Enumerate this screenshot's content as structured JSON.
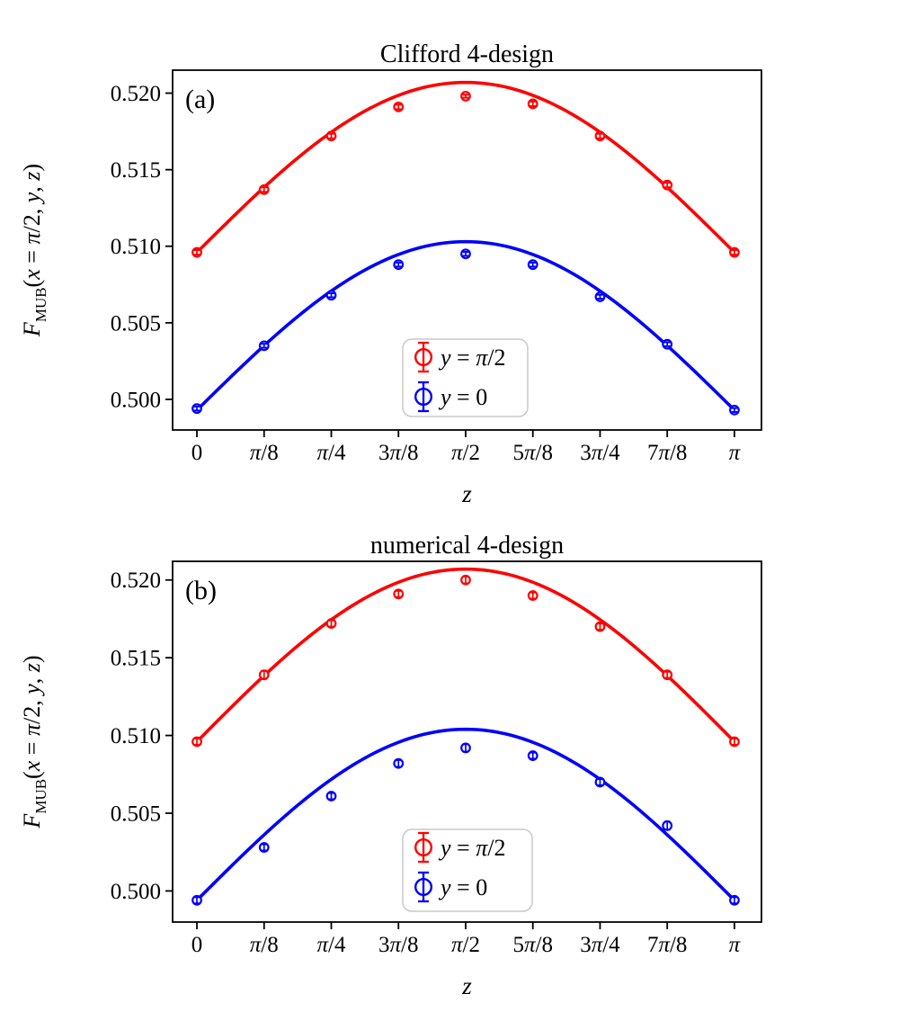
{
  "figure": {
    "background": "#ffffff",
    "text_color": "#000000",
    "red": "#ff0000",
    "blue": "#0000ff",
    "legend_border": "#c9c9c9"
  },
  "chart_data": [
    {
      "id": "a",
      "type": "scatter",
      "panel_label": "(a)",
      "title": "Clifford 4-design",
      "xlabel": "z",
      "ylabel_text": "F_MUB(x = π/2, y, z)",
      "ylabel_segments": [
        {
          "t": "F",
          "it": true
        },
        {
          "t": "MUB",
          "sub": true
        },
        {
          "t": "(",
          "it": false
        },
        {
          "t": "x",
          "it": true
        },
        {
          "t": " = ",
          "it": false
        },
        {
          "t": "π",
          "it": true
        },
        {
          "t": "/2, ",
          "it": false
        },
        {
          "t": "y",
          "it": true
        },
        {
          "t": ", ",
          "it": false
        },
        {
          "t": "z",
          "it": true
        },
        {
          "t": ")",
          "it": false
        }
      ],
      "x": [
        0,
        0.3927,
        0.7854,
        1.1781,
        1.5708,
        1.9635,
        2.3562,
        2.7489,
        3.1416
      ],
      "x_tick_labels": [
        "0",
        "π/8",
        "π/4",
        "3π/8",
        "π/2",
        "5π/8",
        "3π/4",
        "7π/8",
        "π"
      ],
      "y_tick_labels": [
        "0.500",
        "0.505",
        "0.510",
        "0.515",
        "0.520"
      ],
      "y_tick_values": [
        0.5,
        0.505,
        0.51,
        0.515,
        0.52
      ],
      "xlim": [
        -0.142,
        3.2996
      ],
      "ylim": [
        0.498,
        0.5215
      ],
      "grid": false,
      "legend_position": "lower center",
      "series": [
        {
          "key": "y-pi-half",
          "label": "y = π/2",
          "color": "#ff0000",
          "values": [
            0.5096,
            0.5137,
            0.5172,
            0.5191,
            0.5198,
            0.5193,
            0.5172,
            0.514,
            0.5096
          ],
          "errors": [
            0.00015,
            0.00015,
            0.00015,
            0.00015,
            0.0001,
            0.00015,
            0.00015,
            0.00015,
            0.00015
          ],
          "fit": {
            "type": "sine",
            "offset": 0.5096,
            "amplitude": 0.0111
          }
        },
        {
          "key": "y-zero",
          "label": "y = 0",
          "color": "#0000ff",
          "values": [
            0.4994,
            0.5035,
            0.5068,
            0.5088,
            0.5095,
            0.5088,
            0.5067,
            0.5036,
            0.4993
          ],
          "errors": [
            0.00013,
            0.00013,
            0.00013,
            0.00013,
            0.00013,
            0.00013,
            0.00013,
            0.00013,
            0.00013
          ],
          "fit": {
            "type": "sine",
            "offset": 0.4993,
            "amplitude": 0.011
          }
        }
      ]
    },
    {
      "id": "b",
      "type": "scatter",
      "panel_label": "(b)",
      "title": "numerical 4-design",
      "xlabel": "z",
      "ylabel_text": "F_MUB(x = π/2, y, z)",
      "ylabel_segments": [
        {
          "t": "F",
          "it": true
        },
        {
          "t": "MUB",
          "sub": true
        },
        {
          "t": "(",
          "it": false
        },
        {
          "t": "x",
          "it": true
        },
        {
          "t": " = ",
          "it": false
        },
        {
          "t": "π",
          "it": true
        },
        {
          "t": "/2, ",
          "it": false
        },
        {
          "t": "y",
          "it": true
        },
        {
          "t": ", ",
          "it": false
        },
        {
          "t": "z",
          "it": true
        },
        {
          "t": ")",
          "it": false
        }
      ],
      "x": [
        0,
        0.3927,
        0.7854,
        1.1781,
        1.5708,
        1.9635,
        2.3562,
        2.7489,
        3.1416
      ],
      "x_tick_labels": [
        "0",
        "π/8",
        "π/4",
        "3π/8",
        "π/2",
        "5π/8",
        "3π/4",
        "7π/8",
        "π"
      ],
      "y_tick_labels": [
        "0.500",
        "0.505",
        "0.510",
        "0.515",
        "0.520"
      ],
      "y_tick_values": [
        0.5,
        0.505,
        0.51,
        0.515,
        0.52
      ],
      "xlim": [
        -0.142,
        3.2996
      ],
      "ylim": [
        0.498,
        0.5212
      ],
      "grid": false,
      "legend_position": "lower center",
      "series": [
        {
          "key": "y-pi-half",
          "label": "y = π/2",
          "color": "#ff0000",
          "values": [
            0.5096,
            0.5139,
            0.5172,
            0.5191,
            0.52,
            0.519,
            0.517,
            0.5139,
            0.5096
          ],
          "errors": [
            0.0002,
            0.00026,
            0.0002,
            0.0002,
            0.00022,
            0.0002,
            0.0002,
            0.0002,
            0.0002
          ],
          "fit": {
            "type": "sine",
            "offset": 0.5096,
            "amplitude": 0.0111
          }
        },
        {
          "key": "y-zero",
          "label": "y = 0",
          "color": "#0000ff",
          "values": [
            0.4994,
            0.5028,
            0.5061,
            0.5082,
            0.5092,
            0.5087,
            0.507,
            0.5042,
            0.4994
          ],
          "errors": [
            0.0002,
            0.0002,
            0.0002,
            0.00022,
            0.00024,
            0.0002,
            0.0002,
            0.00026,
            0.0002
          ],
          "fit": {
            "type": "sine",
            "offset": 0.4994,
            "amplitude": 0.011
          }
        }
      ]
    }
  ]
}
